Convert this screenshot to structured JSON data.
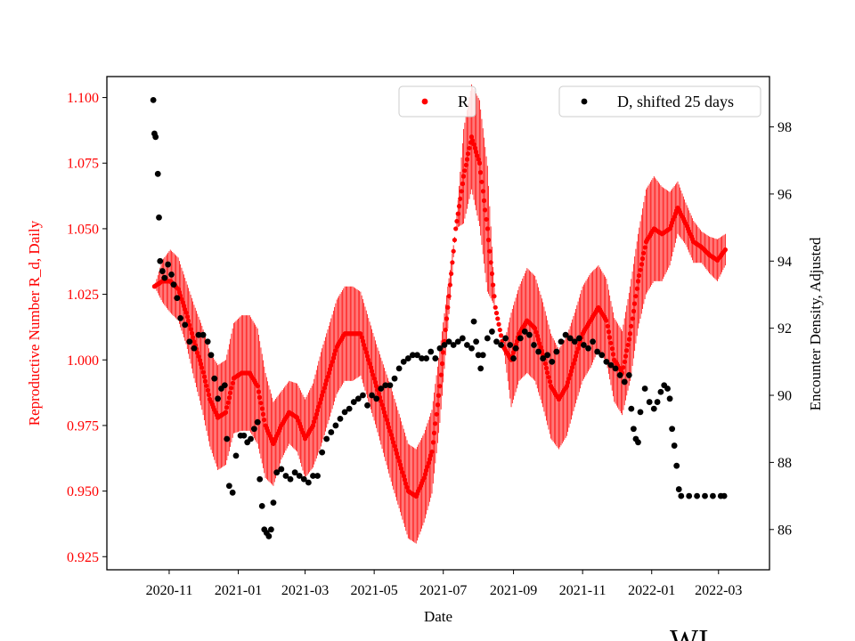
{
  "chart_data": {
    "type": "scatter",
    "xlabel": "Date",
    "ylabel_left": "Reproductive Number R_d, Daily",
    "ylabel_right": "Encounter Density, Adjusted",
    "x_range": [
      "2020-09-07",
      "2022-04-15"
    ],
    "y_left_range": [
      0.92,
      1.108
    ],
    "y_right_range": [
      84.8,
      99.5
    ],
    "x_ticks": [
      "2020-11",
      "2021-01",
      "2021-03",
      "2021-05",
      "2021-07",
      "2021-09",
      "2021-11",
      "2022-01",
      "2022-03"
    ],
    "y_left_ticks": [
      "0.925",
      "0.950",
      "0.975",
      "1.000",
      "1.025",
      "1.050",
      "1.075",
      "1.100"
    ],
    "y_right_ticks": [
      "86",
      "88",
      "90",
      "92",
      "94",
      "96",
      "98"
    ],
    "legend": [
      {
        "label": "R",
        "color": "#ff0000",
        "placement": "top-center"
      },
      {
        "label": "D, shifted 25 days",
        "color": "#000000",
        "placement": "top-right"
      }
    ],
    "series": [
      {
        "name": "R",
        "axis": "left",
        "color": "#ff0000",
        "error_bars": true,
        "points": [
          [
            "2020-10-19",
            1.028,
            0.0
          ],
          [
            "2020-10-26",
            1.03,
            0.008
          ],
          [
            "2020-11-02",
            1.03,
            0.012
          ],
          [
            "2020-11-09",
            1.027,
            0.012
          ],
          [
            "2020-11-16",
            1.018,
            0.012
          ],
          [
            "2020-11-23",
            1.007,
            0.014
          ],
          [
            "2020-11-30",
            0.997,
            0.016
          ],
          [
            "2020-12-07",
            0.985,
            0.018
          ],
          [
            "2020-12-14",
            0.978,
            0.02
          ],
          [
            "2020-12-21",
            0.98,
            0.02
          ],
          [
            "2020-12-28",
            0.993,
            0.021
          ],
          [
            "2021-01-04",
            0.995,
            0.022
          ],
          [
            "2021-01-11",
            0.995,
            0.022
          ],
          [
            "2021-01-18",
            0.99,
            0.022
          ],
          [
            "2021-01-25",
            0.975,
            0.02
          ],
          [
            "2021-02-01",
            0.968,
            0.016
          ],
          [
            "2021-02-08",
            0.975,
            0.013
          ],
          [
            "2021-02-15",
            0.98,
            0.012
          ],
          [
            "2021-02-22",
            0.978,
            0.013
          ],
          [
            "2021-03-01",
            0.97,
            0.015
          ],
          [
            "2021-03-08",
            0.975,
            0.016
          ],
          [
            "2021-03-15",
            0.985,
            0.018
          ],
          [
            "2021-03-22",
            0.995,
            0.018
          ],
          [
            "2021-03-29",
            1.005,
            0.018
          ],
          [
            "2021-04-05",
            1.01,
            0.018
          ],
          [
            "2021-04-12",
            1.01,
            0.018
          ],
          [
            "2021-04-19",
            1.01,
            0.016
          ],
          [
            "2021-04-26",
            1.0,
            0.016
          ],
          [
            "2021-05-03",
            0.99,
            0.016
          ],
          [
            "2021-05-10",
            0.98,
            0.017
          ],
          [
            "2021-05-17",
            0.97,
            0.018
          ],
          [
            "2021-05-24",
            0.96,
            0.018
          ],
          [
            "2021-05-31",
            0.95,
            0.018
          ],
          [
            "2021-06-07",
            0.948,
            0.018
          ],
          [
            "2021-06-14",
            0.955,
            0.017
          ],
          [
            "2021-06-21",
            0.965,
            0.016
          ],
          [
            "2021-06-28",
            0.99,
            0.014
          ],
          [
            "2021-07-05",
            1.02,
            0.008
          ],
          [
            "2021-07-12",
            1.05,
            0.0
          ],
          [
            "2021-07-19",
            1.07,
            0.018
          ],
          [
            "2021-07-26",
            1.085,
            0.02
          ],
          [
            "2021-08-02",
            1.075,
            0.024
          ],
          [
            "2021-08-09",
            1.05,
            0.024
          ],
          [
            "2021-08-16",
            1.02,
            0.0
          ],
          [
            "2021-08-23",
            1.005,
            0.0
          ],
          [
            "2021-08-30",
            1.0,
            0.018
          ],
          [
            "2021-09-06",
            1.01,
            0.018
          ],
          [
            "2021-09-13",
            1.015,
            0.02
          ],
          [
            "2021-09-20",
            1.012,
            0.02
          ],
          [
            "2021-09-27",
            1.002,
            0.02
          ],
          [
            "2021-10-04",
            0.99,
            0.02
          ],
          [
            "2021-10-11",
            0.985,
            0.019
          ],
          [
            "2021-10-18",
            0.99,
            0.019
          ],
          [
            "2021-10-25",
            1.0,
            0.018
          ],
          [
            "2021-11-01",
            1.01,
            0.018
          ],
          [
            "2021-11-08",
            1.015,
            0.018
          ],
          [
            "2021-11-15",
            1.02,
            0.016
          ],
          [
            "2021-11-22",
            1.015,
            0.016
          ],
          [
            "2021-11-29",
            1.0,
            0.016
          ],
          [
            "2021-12-06",
            0.995,
            0.016
          ],
          [
            "2021-12-13",
            1.01,
            0.018
          ],
          [
            "2021-12-20",
            1.03,
            0.018
          ],
          [
            "2021-12-27",
            1.045,
            0.02
          ],
          [
            "2022-01-03",
            1.05,
            0.02
          ],
          [
            "2022-01-10",
            1.048,
            0.018
          ],
          [
            "2022-01-17",
            1.05,
            0.014
          ],
          [
            "2022-01-24",
            1.058,
            0.01
          ],
          [
            "2022-01-31",
            1.052,
            0.008
          ],
          [
            "2022-02-07",
            1.045,
            0.008
          ],
          [
            "2022-02-14",
            1.043,
            0.006
          ],
          [
            "2022-02-21",
            1.04,
            0.007
          ],
          [
            "2022-02-28",
            1.038,
            0.008
          ],
          [
            "2022-03-07",
            1.042,
            0.006
          ]
        ]
      },
      {
        "name": "D, shifted 25 days",
        "axis": "right",
        "color": "#000000",
        "error_bars": false,
        "points": [
          [
            "2020-10-18",
            98.8
          ],
          [
            "2020-10-19",
            97.8
          ],
          [
            "2020-10-20",
            97.7
          ],
          [
            "2020-10-22",
            96.6
          ],
          [
            "2020-10-23",
            95.3
          ],
          [
            "2020-10-24",
            94.0
          ],
          [
            "2020-10-26",
            93.7
          ],
          [
            "2020-10-28",
            93.5
          ],
          [
            "2020-10-31",
            93.9
          ],
          [
            "2020-11-03",
            93.6
          ],
          [
            "2020-11-05",
            93.3
          ],
          [
            "2020-11-08",
            92.9
          ],
          [
            "2020-11-11",
            92.3
          ],
          [
            "2020-11-15",
            92.1
          ],
          [
            "2020-11-19",
            91.6
          ],
          [
            "2020-11-23",
            91.4
          ],
          [
            "2020-11-27",
            91.8
          ],
          [
            "2020-12-01",
            91.8
          ],
          [
            "2020-12-05",
            91.6
          ],
          [
            "2020-12-08",
            91.2
          ],
          [
            "2020-12-11",
            90.5
          ],
          [
            "2020-12-14",
            89.9
          ],
          [
            "2020-12-17",
            90.2
          ],
          [
            "2020-12-20",
            90.3
          ],
          [
            "2020-12-22",
            88.7
          ],
          [
            "2020-12-24",
            87.3
          ],
          [
            "2020-12-27",
            87.1
          ],
          [
            "2020-12-30",
            88.2
          ],
          [
            "2021-01-03",
            88.8
          ],
          [
            "2021-01-06",
            88.8
          ],
          [
            "2021-01-09",
            88.6
          ],
          [
            "2021-01-12",
            88.7
          ],
          [
            "2021-01-15",
            89.0
          ],
          [
            "2021-01-18",
            89.2
          ],
          [
            "2021-01-20",
            87.5
          ],
          [
            "2021-01-22",
            86.7
          ],
          [
            "2021-01-24",
            86.0
          ],
          [
            "2021-01-26",
            85.9
          ],
          [
            "2021-01-28",
            85.8
          ],
          [
            "2021-01-30",
            86.0
          ],
          [
            "2021-02-01",
            86.8
          ],
          [
            "2021-02-04",
            87.7
          ],
          [
            "2021-02-08",
            87.8
          ],
          [
            "2021-02-12",
            87.6
          ],
          [
            "2021-02-16",
            87.5
          ],
          [
            "2021-02-20",
            87.7
          ],
          [
            "2021-02-24",
            87.6
          ],
          [
            "2021-02-28",
            87.5
          ],
          [
            "2021-03-04",
            87.4
          ],
          [
            "2021-03-08",
            87.6
          ],
          [
            "2021-03-12",
            87.6
          ],
          [
            "2021-03-16",
            88.3
          ],
          [
            "2021-03-20",
            88.7
          ],
          [
            "2021-03-24",
            88.9
          ],
          [
            "2021-03-28",
            89.1
          ],
          [
            "2021-04-01",
            89.3
          ],
          [
            "2021-04-05",
            89.5
          ],
          [
            "2021-04-09",
            89.6
          ],
          [
            "2021-04-13",
            89.8
          ],
          [
            "2021-04-17",
            89.9
          ],
          [
            "2021-04-21",
            90.0
          ],
          [
            "2021-04-25",
            89.7
          ],
          [
            "2021-04-29",
            90.0
          ],
          [
            "2021-05-03",
            89.9
          ],
          [
            "2021-05-07",
            90.2
          ],
          [
            "2021-05-11",
            90.3
          ],
          [
            "2021-05-15",
            90.3
          ],
          [
            "2021-05-19",
            90.5
          ],
          [
            "2021-05-23",
            90.8
          ],
          [
            "2021-05-27",
            91.0
          ],
          [
            "2021-05-31",
            91.1
          ],
          [
            "2021-06-04",
            91.2
          ],
          [
            "2021-06-08",
            91.2
          ],
          [
            "2021-06-12",
            91.1
          ],
          [
            "2021-06-16",
            91.1
          ],
          [
            "2021-06-20",
            91.3
          ],
          [
            "2021-06-24",
            91.1
          ],
          [
            "2021-06-28",
            91.4
          ],
          [
            "2021-07-02",
            91.5
          ],
          [
            "2021-07-06",
            91.6
          ],
          [
            "2021-07-10",
            91.5
          ],
          [
            "2021-07-14",
            91.6
          ],
          [
            "2021-07-18",
            91.7
          ],
          [
            "2021-07-22",
            91.5
          ],
          [
            "2021-07-26",
            91.4
          ],
          [
            "2021-07-28",
            92.2
          ],
          [
            "2021-07-30",
            91.6
          ],
          [
            "2021-08-01",
            91.2
          ],
          [
            "2021-08-03",
            90.8
          ],
          [
            "2021-08-05",
            91.2
          ],
          [
            "2021-08-09",
            91.7
          ],
          [
            "2021-08-13",
            91.9
          ],
          [
            "2021-08-17",
            91.6
          ],
          [
            "2021-08-21",
            91.5
          ],
          [
            "2021-08-25",
            91.7
          ],
          [
            "2021-08-29",
            91.5
          ],
          [
            "2021-09-01",
            91.1
          ],
          [
            "2021-09-03",
            91.4
          ],
          [
            "2021-09-07",
            91.7
          ],
          [
            "2021-09-11",
            91.9
          ],
          [
            "2021-09-15",
            91.8
          ],
          [
            "2021-09-19",
            91.5
          ],
          [
            "2021-09-23",
            91.3
          ],
          [
            "2021-09-27",
            91.1
          ],
          [
            "2021-10-01",
            91.2
          ],
          [
            "2021-10-05",
            91.0
          ],
          [
            "2021-10-09",
            91.3
          ],
          [
            "2021-10-13",
            91.6
          ],
          [
            "2021-10-17",
            91.8
          ],
          [
            "2021-10-21",
            91.7
          ],
          [
            "2021-10-25",
            91.6
          ],
          [
            "2021-10-29",
            91.7
          ],
          [
            "2021-11-02",
            91.5
          ],
          [
            "2021-11-06",
            91.4
          ],
          [
            "2021-11-10",
            91.6
          ],
          [
            "2021-11-14",
            91.3
          ],
          [
            "2021-11-18",
            91.2
          ],
          [
            "2021-11-22",
            91.0
          ],
          [
            "2021-11-26",
            90.9
          ],
          [
            "2021-11-30",
            90.8
          ],
          [
            "2021-12-04",
            90.6
          ],
          [
            "2021-12-08",
            90.4
          ],
          [
            "2021-12-12",
            90.6
          ],
          [
            "2021-12-14",
            89.6
          ],
          [
            "2021-12-16",
            89.0
          ],
          [
            "2021-12-18",
            88.7
          ],
          [
            "2021-12-20",
            88.6
          ],
          [
            "2021-12-22",
            89.5
          ],
          [
            "2021-12-26",
            90.2
          ],
          [
            "2021-12-30",
            89.8
          ],
          [
            "2022-01-03",
            89.6
          ],
          [
            "2022-01-06",
            89.8
          ],
          [
            "2022-01-09",
            90.1
          ],
          [
            "2022-01-12",
            90.3
          ],
          [
            "2022-01-15",
            90.2
          ],
          [
            "2022-01-17",
            89.9
          ],
          [
            "2022-01-19",
            89.0
          ],
          [
            "2022-01-21",
            88.5
          ],
          [
            "2022-01-23",
            87.9
          ],
          [
            "2022-01-25",
            87.2
          ],
          [
            "2022-01-27",
            87.0
          ],
          [
            "2022-02-03",
            87.0
          ],
          [
            "2022-02-10",
            87.0
          ],
          [
            "2022-02-17",
            87.0
          ],
          [
            "2022-02-24",
            87.0
          ],
          [
            "2022-03-03",
            87.0
          ],
          [
            "2022-03-06",
            87.0
          ]
        ]
      }
    ]
  },
  "watermark_text": "WI"
}
